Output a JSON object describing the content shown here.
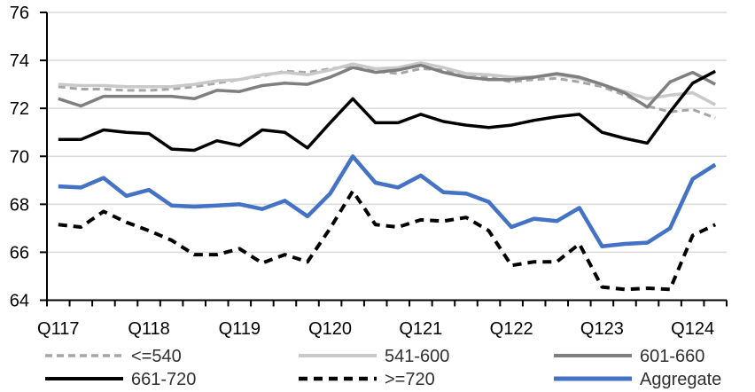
{
  "chart_data": {
    "type": "line",
    "title": "",
    "xlabel": "",
    "ylabel": "",
    "ylim": [
      64,
      76
    ],
    "yticks": [
      64,
      66,
      68,
      70,
      72,
      74,
      76
    ],
    "grid": "horizontal",
    "legend_position": "bottom",
    "axis_color": "#000000",
    "gridline_color": "#d9d9d9",
    "tick_label_color": "#000000",
    "legend_text_color": "#303030",
    "x_categories": [
      "2017Q1",
      "2017Q2",
      "2017Q3",
      "2017Q4",
      "2018Q1",
      "2018Q2",
      "2018Q3",
      "2018Q4",
      "2019Q1",
      "2019Q2",
      "2019Q3",
      "2019Q4",
      "2020Q1",
      "2020Q2",
      "2020Q3",
      "2020Q4",
      "2021Q1",
      "2021Q2",
      "2021Q3",
      "2021Q4",
      "2022Q1",
      "2022Q2",
      "2022Q3",
      "2022Q4",
      "2023Q1",
      "2023Q2",
      "2023Q3",
      "2023Q4",
      "2024Q1",
      "2024Q2"
    ],
    "x_tick_labels": [
      {
        "index": 0,
        "label": "Q117"
      },
      {
        "index": 4,
        "label": "Q118"
      },
      {
        "index": 8,
        "label": "Q119"
      },
      {
        "index": 12,
        "label": "Q120"
      },
      {
        "index": 16,
        "label": "Q121"
      },
      {
        "index": 20,
        "label": "Q122"
      },
      {
        "index": 24,
        "label": "Q123"
      },
      {
        "index": 28,
        "label": "Q124"
      }
    ],
    "series": [
      {
        "id": "le540",
        "label": "<=540",
        "color": "#a6a6a6",
        "dashed": true,
        "width": 3,
        "values": [
          72.9,
          72.8,
          72.8,
          72.75,
          72.75,
          72.8,
          72.9,
          73.05,
          73.2,
          73.35,
          73.55,
          73.5,
          73.65,
          73.75,
          73.55,
          73.45,
          73.65,
          73.6,
          73.45,
          73.3,
          73.1,
          73.2,
          73.25,
          73.1,
          72.9,
          72.55,
          72.1,
          71.85,
          71.95,
          71.6
        ]
      },
      {
        "id": "s541-600",
        "label": "541-600",
        "color": "#c9c9c9",
        "dashed": false,
        "width": 3.5,
        "values": [
          73.0,
          72.95,
          72.95,
          72.9,
          72.9,
          72.9,
          73.0,
          73.15,
          73.2,
          73.4,
          73.5,
          73.4,
          73.6,
          73.85,
          73.65,
          73.7,
          73.9,
          73.7,
          73.45,
          73.4,
          73.3,
          73.3,
          73.4,
          73.25,
          73.0,
          72.7,
          72.4,
          72.55,
          72.65,
          72.15
        ]
      },
      {
        "id": "s601-660",
        "label": "601-660",
        "color": "#7f7f7f",
        "dashed": false,
        "width": 3.5,
        "values": [
          72.4,
          72.1,
          72.5,
          72.5,
          72.5,
          72.5,
          72.4,
          72.75,
          72.7,
          72.95,
          73.05,
          73.0,
          73.3,
          73.7,
          73.5,
          73.6,
          73.8,
          73.5,
          73.3,
          73.2,
          73.2,
          73.3,
          73.45,
          73.3,
          73.0,
          72.65,
          72.05,
          73.1,
          73.5,
          73.0
        ]
      },
      {
        "id": "s661-720",
        "label": "661-720",
        "color": "#000000",
        "dashed": false,
        "width": 3.5,
        "values": [
          70.7,
          70.7,
          71.1,
          71.0,
          70.95,
          70.3,
          70.25,
          70.65,
          70.45,
          71.1,
          71.0,
          70.35,
          71.4,
          72.4,
          71.4,
          71.4,
          71.75,
          71.45,
          71.3,
          71.2,
          71.3,
          71.5,
          71.65,
          71.75,
          71.0,
          70.75,
          70.55,
          71.85,
          73.05,
          73.55
        ]
      },
      {
        "id": "ge720",
        "label": ">=720",
        "color": "#000000",
        "dashed": true,
        "width": 4,
        "values": [
          67.15,
          67.05,
          67.7,
          67.25,
          66.9,
          66.5,
          65.9,
          65.9,
          66.15,
          65.55,
          65.9,
          65.6,
          67.0,
          68.55,
          67.15,
          67.05,
          67.35,
          67.3,
          67.45,
          66.9,
          65.45,
          65.6,
          65.6,
          66.35,
          64.55,
          64.45,
          64.5,
          64.45,
          66.7,
          67.15
        ]
      },
      {
        "id": "aggregate",
        "label": "Aggregate",
        "color": "#4472c4",
        "dashed": false,
        "width": 4.5,
        "values": [
          68.75,
          68.7,
          69.1,
          68.35,
          68.6,
          67.95,
          67.9,
          67.95,
          68.0,
          67.8,
          68.15,
          67.5,
          68.45,
          70.0,
          68.9,
          68.7,
          69.2,
          68.5,
          68.45,
          68.1,
          67.05,
          67.4,
          67.3,
          67.85,
          66.25,
          66.35,
          66.4,
          67.0,
          69.05,
          69.65
        ]
      }
    ]
  }
}
